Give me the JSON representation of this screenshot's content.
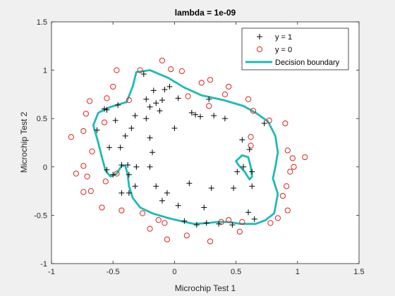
{
  "chart_data": {
    "type": "scatter",
    "title": "lambda = 1e-09",
    "xlabel": "Microchip Test 1",
    "ylabel": "Microchip Test 2",
    "xlim": [
      -1,
      1.5
    ],
    "ylim": [
      -1,
      1.5
    ],
    "xticks": [
      "-1",
      "-0.5",
      "0",
      "0.5",
      "1",
      "1.5"
    ],
    "yticks": [
      "-1",
      "-0.5",
      "0",
      "0.5",
      "1",
      "1.5"
    ],
    "xtick_values": [
      -1,
      -0.5,
      0,
      0.5,
      1,
      1.5
    ],
    "ytick_values": [
      -1,
      -0.5,
      0,
      0.5,
      1,
      1.5
    ],
    "grid": false,
    "legend_position": "top-right",
    "legend": [
      "y = 1",
      "y = 0",
      "Decision boundary"
    ],
    "colors": {
      "positive": "#000000",
      "negative": "#e02020",
      "boundary": "#1ebbb3"
    },
    "series": [
      {
        "name": "y = 1",
        "marker": "plus",
        "points": [
          [
            -0.25,
            0.96
          ],
          [
            -0.17,
            0.79
          ],
          [
            -0.1,
            0.69
          ],
          [
            -0.23,
            0.7
          ],
          [
            -0.15,
            0.66
          ],
          [
            -0.2,
            0.62
          ],
          [
            -0.12,
            0.58
          ],
          [
            -0.32,
            0.53
          ],
          [
            -0.08,
            0.8
          ],
          [
            0.03,
            0.71
          ],
          [
            -0.04,
            0.83
          ],
          [
            -0.46,
            0.64
          ],
          [
            -0.57,
            0.6
          ],
          [
            -0.55,
            0.59
          ],
          [
            -0.48,
            0.48
          ],
          [
            -0.63,
            0.38
          ],
          [
            -0.35,
            0.4
          ],
          [
            -0.53,
            0.2
          ],
          [
            -0.44,
            0.2
          ],
          [
            -0.4,
            0.32
          ],
          [
            -0.23,
            0.5
          ],
          [
            -0.2,
            0.3
          ],
          [
            -0.18,
            0.15
          ],
          [
            0.0,
            0.4
          ],
          [
            0.14,
            0.56
          ],
          [
            0.17,
            0.54
          ],
          [
            0.21,
            0.52
          ],
          [
            0.28,
            0.7
          ],
          [
            0.32,
            0.53
          ],
          [
            0.41,
            0.5
          ],
          [
            0.55,
            0.28
          ],
          [
            0.61,
            0.18
          ],
          [
            0.56,
            0.0
          ],
          [
            0.63,
            -0.05
          ],
          [
            0.51,
            -0.05
          ],
          [
            0.63,
            -0.2
          ],
          [
            0.48,
            -0.22
          ],
          [
            0.6,
            -0.47
          ],
          [
            0.65,
            -0.54
          ],
          [
            0.47,
            -0.6
          ],
          [
            0.26,
            -0.58
          ],
          [
            0.36,
            -0.59
          ],
          [
            0.18,
            -0.6
          ],
          [
            0.08,
            -0.56
          ],
          [
            0.24,
            -0.42
          ],
          [
            0.03,
            -0.4
          ],
          [
            -0.1,
            -0.35
          ],
          [
            -0.06,
            -0.27
          ],
          [
            0.12,
            -0.17
          ],
          [
            0.3,
            -0.22
          ],
          [
            -0.15,
            -0.2
          ],
          [
            -0.32,
            -0.2
          ],
          [
            -0.37,
            -0.27
          ],
          [
            -0.43,
            -0.27
          ],
          [
            -0.43,
            0.02
          ],
          [
            -0.38,
            0.02
          ],
          [
            -0.31,
            0.0
          ],
          [
            -0.2,
            0.0
          ],
          [
            -0.37,
            -0.08
          ],
          [
            -0.5,
            -0.08
          ],
          [
            -0.55,
            -0.03
          ],
          [
            0.73,
            0.45
          ]
        ]
      },
      {
        "name": "y = 0",
        "marker": "circle",
        "points": [
          [
            -0.1,
            1.1
          ],
          [
            -0.28,
            1.0
          ],
          [
            -0.03,
            1.01
          ],
          [
            0.06,
            0.99
          ],
          [
            0.29,
            0.9
          ],
          [
            -0.47,
            1.0
          ],
          [
            -0.5,
            0.83
          ],
          [
            -0.55,
            0.71
          ],
          [
            -0.37,
            0.69
          ],
          [
            -0.69,
            0.68
          ],
          [
            -0.72,
            0.55
          ],
          [
            -0.57,
            0.46
          ],
          [
            -0.74,
            0.37
          ],
          [
            -0.84,
            0.31
          ],
          [
            -0.67,
            0.16
          ],
          [
            -0.74,
            0.01
          ],
          [
            -0.71,
            -0.1
          ],
          [
            -0.8,
            -0.07
          ],
          [
            -0.74,
            -0.26
          ],
          [
            -0.68,
            -0.25
          ],
          [
            -0.59,
            -0.42
          ],
          [
            -0.43,
            -0.45
          ],
          [
            -0.56,
            -0.15
          ],
          [
            -0.47,
            -0.07
          ],
          [
            -0.26,
            -0.48
          ],
          [
            -0.13,
            -0.55
          ],
          [
            -0.08,
            -0.58
          ],
          [
            -0.2,
            -0.64
          ],
          [
            -0.06,
            -0.75
          ],
          [
            0.1,
            -0.71
          ],
          [
            0.29,
            -0.77
          ],
          [
            0.38,
            -0.57
          ],
          [
            0.44,
            -0.55
          ],
          [
            0.53,
            -0.67
          ],
          [
            0.55,
            -0.57
          ],
          [
            0.78,
            -0.58
          ],
          [
            0.84,
            -0.53
          ],
          [
            0.92,
            -0.45
          ],
          [
            0.88,
            -0.3
          ],
          [
            0.91,
            -0.2
          ],
          [
            0.94,
            -0.05
          ],
          [
            0.97,
            0.0
          ],
          [
            1.06,
            0.1
          ],
          [
            0.96,
            0.09
          ],
          [
            0.92,
            0.17
          ],
          [
            0.9,
            0.45
          ],
          [
            0.77,
            0.48
          ],
          [
            0.64,
            0.58
          ],
          [
            0.6,
            0.7
          ],
          [
            0.41,
            0.75
          ],
          [
            0.44,
            0.83
          ],
          [
            0.22,
            0.87
          ],
          [
            0.11,
            0.73
          ],
          [
            0.28,
            0.63
          ],
          [
            0.62,
            0.31
          ],
          [
            0.62,
            0.22
          ]
        ]
      },
      {
        "name": "Decision boundary",
        "marker": "line",
        "points": [
          [
            -0.31,
            0.98
          ],
          [
            -0.2,
            1.0
          ],
          [
            -0.05,
            0.92
          ],
          [
            0.08,
            0.82
          ],
          [
            0.22,
            0.74
          ],
          [
            0.4,
            0.69
          ],
          [
            0.56,
            0.63
          ],
          [
            0.66,
            0.56
          ],
          [
            0.76,
            0.47
          ],
          [
            0.82,
            0.32
          ],
          [
            0.84,
            0.15
          ],
          [
            0.82,
            0.0
          ],
          [
            0.8,
            -0.12
          ],
          [
            0.84,
            -0.28
          ],
          [
            0.81,
            -0.48
          ],
          [
            0.74,
            -0.55
          ],
          [
            0.66,
            -0.59
          ],
          [
            0.54,
            -0.59
          ],
          [
            0.44,
            -0.57
          ],
          [
            0.34,
            -0.57
          ],
          [
            0.28,
            -0.58
          ],
          [
            0.16,
            -0.59
          ],
          [
            0.05,
            -0.56
          ],
          [
            -0.05,
            -0.53
          ],
          [
            -0.18,
            -0.48
          ],
          [
            -0.28,
            -0.42
          ],
          [
            -0.34,
            -0.32
          ],
          [
            -0.37,
            -0.2
          ],
          [
            -0.38,
            -0.08
          ],
          [
            -0.4,
            0.01
          ],
          [
            -0.43,
            0.01
          ],
          [
            -0.47,
            -0.07
          ],
          [
            -0.52,
            -0.1
          ],
          [
            -0.56,
            -0.04
          ],
          [
            -0.59,
            0.1
          ],
          [
            -0.62,
            0.25
          ],
          [
            -0.66,
            0.43
          ],
          [
            -0.62,
            0.56
          ],
          [
            -0.52,
            0.62
          ],
          [
            -0.39,
            0.67
          ],
          [
            -0.34,
            0.83
          ],
          [
            -0.31,
            0.98
          ]
        ]
      },
      {
        "name": "Decision boundary island",
        "marker": "line",
        "points": [
          [
            0.5,
            0.06
          ],
          [
            0.55,
            0.12
          ],
          [
            0.6,
            0.1
          ],
          [
            0.62,
            0.0
          ],
          [
            0.63,
            -0.1
          ],
          [
            0.61,
            -0.13
          ],
          [
            0.57,
            -0.05
          ],
          [
            0.52,
            0.02
          ],
          [
            0.5,
            0.06
          ]
        ]
      }
    ]
  }
}
